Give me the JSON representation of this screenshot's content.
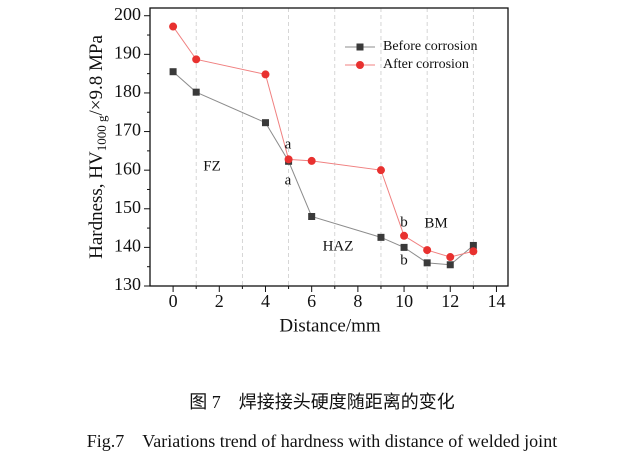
{
  "chart_data": {
    "type": "line",
    "y_label": {
      "text": "Hardness, HV",
      "subscript": "1000 g",
      "suffix": "/×9.8 MPa"
    },
    "x_label": "Distance/mm",
    "xlim": [
      -1,
      14.5
    ],
    "xticks": [
      0,
      2,
      4,
      6,
      8,
      10,
      12,
      14
    ],
    "xminorticks": [
      1,
      3,
      5,
      7,
      9,
      11,
      13
    ],
    "ylim": [
      130,
      202
    ],
    "yticks": [
      130,
      140,
      150,
      160,
      170,
      180,
      190,
      200
    ],
    "x": [
      0,
      1,
      4,
      5,
      6,
      9,
      10,
      11,
      12,
      13
    ],
    "series": [
      {
        "name": "Before corrosion",
        "color": "#8c8c8c",
        "marker_color": "#3a3a3a",
        "marker": "square",
        "values": [
          185.5,
          180.2,
          172.3,
          162.3,
          148,
          142.6,
          140,
          136,
          135.5,
          140.5
        ]
      },
      {
        "name": "After corrosion",
        "color": "#f08080",
        "marker_color": "#e8312f",
        "marker": "circle",
        "values": [
          197.2,
          188.7,
          184.8,
          162.8,
          162.4,
          160,
          143,
          139.3,
          137.5,
          139
        ]
      }
    ],
    "legend": "upper right",
    "annotations": [
      "a",
      "a",
      "FZ",
      "HAZ",
      "b",
      "b",
      "BM"
    ],
    "caption_cn": "图 7　焊接接头硬度随距离的变化",
    "caption_en": "Fig.7　Variations trend of hardness with distance of welded joint"
  }
}
